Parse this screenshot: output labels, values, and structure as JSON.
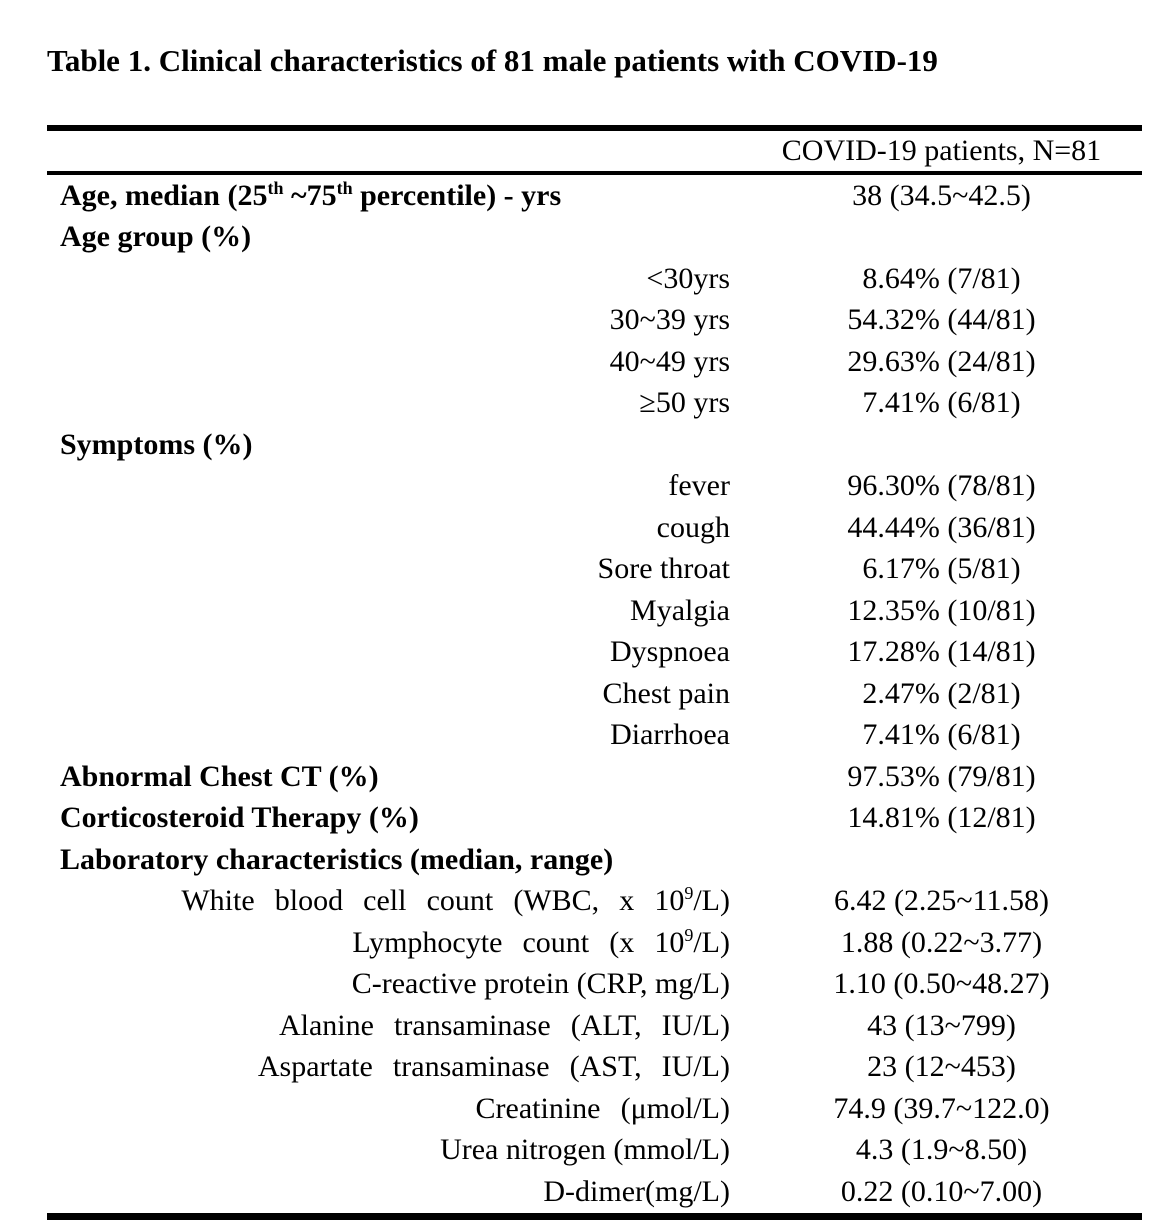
{
  "title": "Table 1. Clinical characteristics of 81 male patients with COVID-19",
  "colors": {
    "text": "#000000",
    "background": "#ffffff",
    "rule": "#000000"
  },
  "table": {
    "column_header": "COVID-19 patients, N=81",
    "rows": [
      {
        "kind": "section",
        "label_parts": [
          {
            "t": "Age, median (25"
          },
          {
            "t": "th",
            "sup": true
          },
          {
            "t": " ~75"
          },
          {
            "t": "th",
            "sup": true
          },
          {
            "t": " percentile) - yrs"
          }
        ],
        "value": "38 (34.5~42.5)"
      },
      {
        "kind": "section",
        "label_parts": [
          {
            "t": "Age group (%)"
          }
        ],
        "value": ""
      },
      {
        "kind": "item",
        "label_parts": [
          {
            "t": "<30yrs"
          }
        ],
        "value": "8.64% (7/81)"
      },
      {
        "kind": "item",
        "label_parts": [
          {
            "t": "30~39 yrs"
          }
        ],
        "value": "54.32% (44/81)"
      },
      {
        "kind": "item",
        "label_parts": [
          {
            "t": "40~49 yrs"
          }
        ],
        "value": "29.63% (24/81)"
      },
      {
        "kind": "item",
        "label_parts": [
          {
            "t": "≥50 yrs"
          }
        ],
        "value": "7.41% (6/81)"
      },
      {
        "kind": "section",
        "label_parts": [
          {
            "t": "Symptoms (%)"
          }
        ],
        "value": ""
      },
      {
        "kind": "item",
        "label_parts": [
          {
            "t": "fever"
          }
        ],
        "value": "96.30% (78/81)"
      },
      {
        "kind": "item",
        "label_parts": [
          {
            "t": "cough"
          }
        ],
        "value": "44.44% (36/81)"
      },
      {
        "kind": "item",
        "label_parts": [
          {
            "t": "Sore throat"
          }
        ],
        "value": "6.17% (5/81)"
      },
      {
        "kind": "item",
        "label_parts": [
          {
            "t": "Myalgia"
          }
        ],
        "value": "12.35% (10/81)"
      },
      {
        "kind": "item",
        "label_parts": [
          {
            "t": "Dyspnoea"
          }
        ],
        "value": "17.28% (14/81)"
      },
      {
        "kind": "item",
        "label_parts": [
          {
            "t": "Chest pain"
          }
        ],
        "value": "2.47% (2/81)"
      },
      {
        "kind": "item",
        "label_parts": [
          {
            "t": "Diarrhoea"
          }
        ],
        "value": "7.41% (6/81)"
      },
      {
        "kind": "section",
        "label_parts": [
          {
            "t": "Abnormal Chest CT (%)"
          }
        ],
        "value": "97.53% (79/81)"
      },
      {
        "kind": "section",
        "label_parts": [
          {
            "t": "Corticosteroid Therapy (%)"
          }
        ],
        "value": "14.81% (12/81)"
      },
      {
        "kind": "section",
        "label_parts": [
          {
            "t": "Laboratory characteristics (median, range)"
          }
        ],
        "value": ""
      },
      {
        "kind": "item",
        "spread": true,
        "label_parts": [
          {
            "t": "White blood cell count (WBC, x 10"
          },
          {
            "t": "9",
            "sup": true
          },
          {
            "t": "/L)"
          }
        ],
        "value": "6.42 (2.25~11.58)"
      },
      {
        "kind": "item",
        "spread": true,
        "label_parts": [
          {
            "t": "Lymphocyte count (x 10"
          },
          {
            "t": "9",
            "sup": true
          },
          {
            "t": "/L)"
          }
        ],
        "value": "1.88 (0.22~3.77)"
      },
      {
        "kind": "item",
        "label_parts": [
          {
            "t": "C-reactive protein (CRP, mg/L)"
          }
        ],
        "value": "1.10 (0.50~48.27)"
      },
      {
        "kind": "item",
        "spread": true,
        "label_parts": [
          {
            "t": "Alanine transaminase (ALT, IU/L)"
          }
        ],
        "value": "43 (13~799)"
      },
      {
        "kind": "item",
        "spread": true,
        "label_parts": [
          {
            "t": "Aspartate transaminase (AST, IU/L)"
          }
        ],
        "value": "23 (12~453)"
      },
      {
        "kind": "item",
        "spread": true,
        "label_parts": [
          {
            "t": "Creatinine (μmol/L)"
          }
        ],
        "value": "74.9 (39.7~122.0)"
      },
      {
        "kind": "item",
        "label_parts": [
          {
            "t": "Urea nitrogen (mmol/L)"
          }
        ],
        "value": "4.3 (1.9~8.50)"
      },
      {
        "kind": "item",
        "label_parts": [
          {
            "t": "D-dimer(mg/L)"
          }
        ],
        "value": "0.22 (0.10~7.00)"
      }
    ]
  }
}
